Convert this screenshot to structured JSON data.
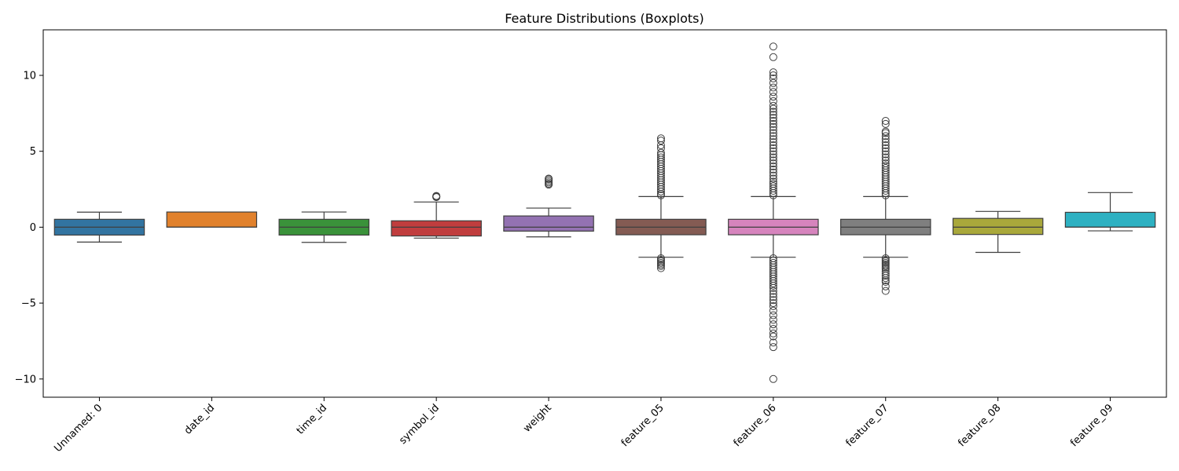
{
  "chart_data": {
    "type": "boxplot",
    "title": "Feature Distributions (Boxplots)",
    "xlabel": "",
    "ylabel": "",
    "ylim": [
      -11.2,
      13.0
    ],
    "yticks": [
      -10,
      -5,
      0,
      5,
      10
    ],
    "ytick_labels": [
      "−10",
      "−5",
      "0",
      "5",
      "10"
    ],
    "grid": false,
    "categories": [
      "Unnamed: 0",
      "date_id",
      "time_id",
      "symbol_id",
      "weight",
      "feature_05",
      "feature_06",
      "feature_07",
      "feature_08",
      "feature_09"
    ],
    "boxes": [
      {
        "q1": -0.52,
        "median": 0.0,
        "q3": 0.52,
        "whisker_low": -0.98,
        "whisker_high": 0.99,
        "color": "#3274a1",
        "outliers_high": [],
        "outliers_low": []
      },
      {
        "q1": 0.0,
        "median": 0.0,
        "q3": 1.0,
        "whisker_low": 0.0,
        "whisker_high": 1.0,
        "color": "#e1812c",
        "outliers_high": [],
        "outliers_low": []
      },
      {
        "q1": -0.52,
        "median": 0.0,
        "q3": 0.52,
        "whisker_low": -1.0,
        "whisker_high": 1.0,
        "color": "#3a923a",
        "outliers_high": [],
        "outliers_low": []
      },
      {
        "q1": -0.58,
        "median": 0.0,
        "q3": 0.42,
        "whisker_low": -0.72,
        "whisker_high": 1.66,
        "color": "#c03d3e",
        "outliers_high": [
          1.98,
          2.0,
          2.02,
          2.06
        ],
        "outliers_low": []
      },
      {
        "q1": -0.26,
        "median": 0.0,
        "q3": 0.74,
        "whisker_low": -0.64,
        "whisker_high": 1.26,
        "color": "#9372b2",
        "outliers_high": [
          2.8,
          2.86,
          2.95,
          3.05,
          3.15,
          3.2
        ],
        "outliers_low": []
      },
      {
        "q1": -0.5,
        "median": 0.0,
        "q3": 0.52,
        "whisker_low": -1.98,
        "whisker_high": 2.02,
        "color": "#845b53",
        "outliers_high": [
          2.1,
          2.2,
          2.35,
          2.5,
          2.65,
          2.8,
          2.95,
          3.1,
          3.25,
          3.4,
          3.55,
          3.7,
          3.85,
          4.0,
          4.15,
          4.3,
          4.45,
          4.6,
          4.75,
          4.9,
          5.2,
          5.4,
          5.7,
          5.85
        ],
        "outliers_low": [
          -2.05,
          -2.15,
          -2.25,
          -2.35,
          -2.45,
          -2.55,
          -2.7
        ]
      },
      {
        "q1": -0.5,
        "median": 0.0,
        "q3": 0.52,
        "whisker_low": -1.98,
        "whisker_high": 2.02,
        "color": "#d684bd",
        "outliers_high": [
          2.1,
          2.25,
          2.4,
          2.55,
          2.7,
          2.85,
          3.0,
          3.2,
          3.4,
          3.6,
          3.8,
          4.0,
          4.2,
          4.4,
          4.6,
          4.8,
          5.0,
          5.2,
          5.4,
          5.6,
          5.8,
          6.0,
          6.2,
          6.4,
          6.6,
          6.8,
          7.0,
          7.2,
          7.4,
          7.6,
          7.8,
          8.0,
          8.3,
          8.6,
          8.9,
          9.2,
          9.5,
          9.8,
          10.0,
          10.2,
          11.2,
          11.9
        ],
        "outliers_low": [
          -2.05,
          -2.2,
          -2.35,
          -2.5,
          -2.65,
          -2.8,
          -2.95,
          -3.1,
          -3.25,
          -3.4,
          -3.55,
          -3.7,
          -3.85,
          -4.0,
          -4.2,
          -4.4,
          -4.6,
          -4.8,
          -5.0,
          -5.2,
          -5.5,
          -5.8,
          -6.1,
          -6.4,
          -6.7,
          -7.0,
          -7.2,
          -7.6,
          -7.9,
          -10.0
        ]
      },
      {
        "q1": -0.5,
        "median": 0.0,
        "q3": 0.52,
        "whisker_low": -1.98,
        "whisker_high": 2.02,
        "color": "#7f7f7f",
        "outliers_high": [
          2.1,
          2.25,
          2.4,
          2.55,
          2.7,
          2.85,
          3.0,
          3.15,
          3.3,
          3.45,
          3.6,
          3.75,
          3.9,
          4.05,
          4.2,
          4.4,
          4.6,
          4.8,
          5.0,
          5.2,
          5.4,
          5.6,
          5.8,
          6.0,
          6.2,
          6.3,
          6.8,
          7.0
        ],
        "outliers_low": [
          -2.05,
          -2.15,
          -2.25,
          -2.35,
          -2.45,
          -2.55,
          -2.65,
          -2.75,
          -2.9,
          -3.05,
          -3.2,
          -3.35,
          -3.5,
          -3.6,
          -3.9,
          -4.2
        ]
      },
      {
        "q1": -0.48,
        "median": 0.0,
        "q3": 0.58,
        "whisker_low": -1.66,
        "whisker_high": 1.04,
        "color": "#a9a83b",
        "outliers_high": [],
        "outliers_low": []
      },
      {
        "q1": 0.0,
        "median": 0.0,
        "q3": 0.98,
        "whisker_low": -0.24,
        "whisker_high": 2.28,
        "color": "#2eb1c2",
        "outliers_high": [],
        "outliers_low": []
      }
    ]
  }
}
